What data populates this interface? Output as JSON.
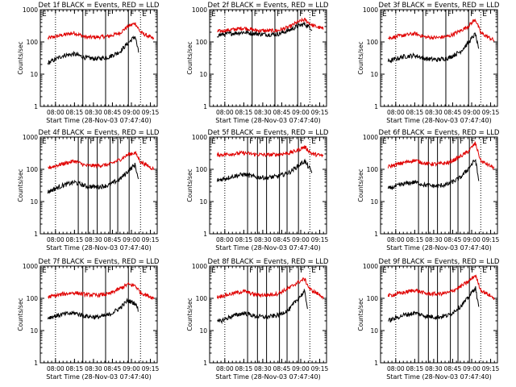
{
  "chart_data": {
    "type": "line",
    "yscale": "log",
    "ylim": [
      1,
      1000
    ],
    "ytick_labels": [
      "1",
      "10",
      "100",
      "1000"
    ],
    "xlim": [
      7.8,
      9.34
    ],
    "xticks": [
      8.0,
      8.25,
      8.5,
      8.75,
      9.0,
      9.25
    ],
    "xtick_labels": [
      "08:00",
      "08:15",
      "08:30",
      "08:45",
      "09:00",
      "09:15"
    ],
    "xlabel": "Start Time (28-Nov-03 07:47:40)",
    "ylabel": "Counts/sec",
    "series_styles": {
      "events": {
        "name": "Events",
        "color": "#000000"
      },
      "lld": {
        "name": "LLD",
        "color": "#e00000"
      }
    },
    "panels": [
      {
        "title": "Det 1f BLACK = Events, RED = LLD",
        "flag_lines": [
          8.36,
          8.66,
          8.96
        ],
        "flag_labels": [
          "F",
          "F",
          "F"
        ],
        "dotted_lines": [
          8.0,
          9.12
        ],
        "events": {
          "x": [
            7.9,
            8.1,
            8.25,
            8.4,
            8.55,
            8.7,
            8.85,
            8.95,
            9.05,
            9.1
          ],
          "y": [
            22,
            38,
            42,
            32,
            30,
            34,
            50,
            90,
            150,
            40
          ]
        },
        "lld": {
          "x": [
            7.9,
            8.1,
            8.25,
            8.4,
            8.55,
            8.7,
            8.85,
            8.95,
            9.05,
            9.12,
            9.3
          ],
          "y": [
            130,
            165,
            190,
            140,
            140,
            150,
            190,
            300,
            380,
            200,
            120
          ]
        }
      },
      {
        "title": "Det 2f BLACK = Events, RED = LLD",
        "flag_lines": [
          8.36,
          8.66,
          8.96
        ],
        "flag_labels": [
          "F",
          "F",
          "F"
        ],
        "dotted_lines": [
          8.0,
          9.12
        ],
        "events": {
          "x": [
            7.9,
            8.1,
            8.25,
            8.4,
            8.55,
            8.7,
            8.85,
            8.95,
            9.05,
            9.15
          ],
          "y": [
            160,
            185,
            200,
            180,
            170,
            175,
            230,
            300,
            360,
            250
          ]
        },
        "lld": {
          "x": [
            7.9,
            8.1,
            8.25,
            8.4,
            8.55,
            8.7,
            8.85,
            8.95,
            9.05,
            9.15,
            9.3
          ],
          "y": [
            210,
            240,
            270,
            230,
            220,
            225,
            290,
            400,
            490,
            330,
            250
          ]
        }
      },
      {
        "title": "Det 3f BLACK = Events, RED = LLD",
        "flag_lines": [
          8.36,
          8.66,
          8.96
        ],
        "flag_labels": [
          "F",
          "F",
          "F"
        ],
        "dotted_lines": [
          8.0,
          9.12
        ],
        "events": {
          "x": [
            7.9,
            8.1,
            8.25,
            8.4,
            8.55,
            8.7,
            8.85,
            8.95,
            9.05,
            9.1
          ],
          "y": [
            25,
            35,
            38,
            30,
            28,
            32,
            50,
            90,
            180,
            45
          ]
        },
        "lld": {
          "x": [
            7.9,
            8.1,
            8.25,
            8.4,
            8.55,
            8.7,
            8.85,
            8.95,
            9.05,
            9.12,
            9.3
          ],
          "y": [
            130,
            160,
            180,
            140,
            135,
            150,
            220,
            300,
            500,
            190,
            110
          ]
        }
      },
      {
        "title": "Det 4f BLACK = Events, RED = LLD",
        "flag_lines": [
          8.3,
          8.43,
          8.55,
          8.72,
          8.82,
          8.97
        ],
        "flag_labels": [
          "F",
          "F",
          "F",
          "F",
          "F",
          "F"
        ],
        "dotted_lines": [
          8.0,
          9.12
        ],
        "events": {
          "x": [
            7.9,
            8.1,
            8.25,
            8.4,
            8.55,
            8.7,
            8.85,
            8.95,
            9.05,
            9.1
          ],
          "y": [
            20,
            32,
            40,
            30,
            28,
            32,
            50,
            85,
            140,
            38
          ]
        },
        "lld": {
          "x": [
            7.9,
            8.1,
            8.25,
            8.4,
            8.55,
            8.7,
            8.85,
            8.95,
            9.05,
            9.12,
            9.3
          ],
          "y": [
            110,
            150,
            180,
            130,
            130,
            140,
            200,
            280,
            330,
            170,
            100
          ]
        }
      },
      {
        "title": "Det 5f BLACK = Events, RED = LLD",
        "flag_lines": [
          8.3,
          8.43,
          8.55,
          8.72,
          8.82,
          8.97
        ],
        "flag_labels": [
          "F",
          "F",
          "F",
          "F",
          "F",
          "F"
        ],
        "dotted_lines": [
          8.0,
          9.12
        ],
        "events": {
          "x": [
            7.9,
            8.1,
            8.25,
            8.4,
            8.55,
            8.7,
            8.85,
            8.95,
            9.05,
            9.15
          ],
          "y": [
            45,
            60,
            70,
            58,
            55,
            60,
            80,
            120,
            180,
            80
          ]
        },
        "lld": {
          "x": [
            7.9,
            8.1,
            8.25,
            8.4,
            8.55,
            8.7,
            8.85,
            8.95,
            9.05,
            9.15,
            9.3
          ],
          "y": [
            280,
            300,
            320,
            290,
            280,
            290,
            320,
            380,
            500,
            300,
            260
          ]
        }
      },
      {
        "title": "Det 6f BLACK = Events, RED = LLD",
        "flag_lines": [
          8.3,
          8.43,
          8.55,
          8.72,
          8.82,
          8.97
        ],
        "flag_labels": [
          "F",
          "F",
          "F",
          "F",
          "F",
          "F"
        ],
        "dotted_lines": [
          8.0,
          9.12
        ],
        "events": {
          "x": [
            7.9,
            8.1,
            8.25,
            8.4,
            8.55,
            8.7,
            8.85,
            8.95,
            9.05,
            9.1
          ],
          "y": [
            25,
            35,
            40,
            32,
            30,
            35,
            55,
            100,
            200,
            35
          ]
        },
        "lld": {
          "x": [
            7.9,
            8.1,
            8.25,
            8.4,
            8.55,
            8.7,
            8.85,
            8.95,
            9.05,
            9.12,
            9.3
          ],
          "y": [
            120,
            160,
            190,
            150,
            145,
            160,
            250,
            350,
            650,
            180,
            110
          ]
        }
      },
      {
        "title": "Det 7f BLACK = Events, RED = LLD",
        "flag_lines": [
          8.36,
          8.66,
          8.96
        ],
        "flag_labels": [
          "F",
          "F",
          "F"
        ],
        "dotted_lines": [
          8.0,
          9.12
        ],
        "events": {
          "x": [
            7.9,
            8.1,
            8.25,
            8.4,
            8.55,
            8.7,
            8.85,
            8.95,
            9.05,
            9.1
          ],
          "y": [
            25,
            32,
            35,
            28,
            26,
            30,
            50,
            85,
            70,
            40
          ]
        },
        "lld": {
          "x": [
            7.9,
            8.1,
            8.25,
            8.4,
            8.55,
            8.7,
            8.85,
            8.95,
            9.05,
            9.12,
            9.3
          ],
          "y": [
            110,
            135,
            150,
            130,
            125,
            135,
            200,
            270,
            250,
            150,
            100
          ]
        }
      },
      {
        "title": "Det 8f BLACK = Events, RED = LLD",
        "flag_lines": [
          8.3,
          8.43,
          8.55,
          8.72,
          8.82,
          8.97
        ],
        "flag_labels": [
          "F",
          "F",
          "F",
          "F",
          "F",
          "F"
        ],
        "dotted_lines": [
          8.0,
          9.12
        ],
        "events": {
          "x": [
            7.9,
            8.1,
            8.25,
            8.4,
            8.55,
            8.7,
            8.85,
            8.95,
            9.05,
            9.1
          ],
          "y": [
            18,
            28,
            35,
            28,
            26,
            30,
            45,
            90,
            160,
            40
          ]
        },
        "lld": {
          "x": [
            7.9,
            8.1,
            8.25,
            8.4,
            8.55,
            8.7,
            8.85,
            8.95,
            9.05,
            9.12,
            9.3
          ],
          "y": [
            110,
            140,
            165,
            130,
            125,
            140,
            210,
            300,
            400,
            190,
            110
          ]
        }
      },
      {
        "title": "Det 9f BLACK = Events, RED = LLD",
        "flag_lines": [
          8.3,
          8.43,
          8.55,
          8.72,
          8.82,
          8.97
        ],
        "flag_labels": [
          "F",
          "F",
          "F",
          "F",
          "F",
          "F"
        ],
        "dotted_lines": [
          8.0,
          9.12
        ],
        "events": {
          "x": [
            7.9,
            8.1,
            8.25,
            8.4,
            8.55,
            8.7,
            8.85,
            8.95,
            9.05,
            9.1
          ],
          "y": [
            20,
            30,
            35,
            28,
            26,
            30,
            55,
            100,
            220,
            40
          ]
        },
        "lld": {
          "x": [
            7.9,
            8.1,
            8.25,
            8.4,
            8.55,
            8.7,
            8.85,
            8.95,
            9.05,
            9.12,
            9.3
          ],
          "y": [
            120,
            150,
            180,
            140,
            135,
            150,
            230,
            320,
            520,
            180,
            100
          ]
        }
      }
    ]
  }
}
